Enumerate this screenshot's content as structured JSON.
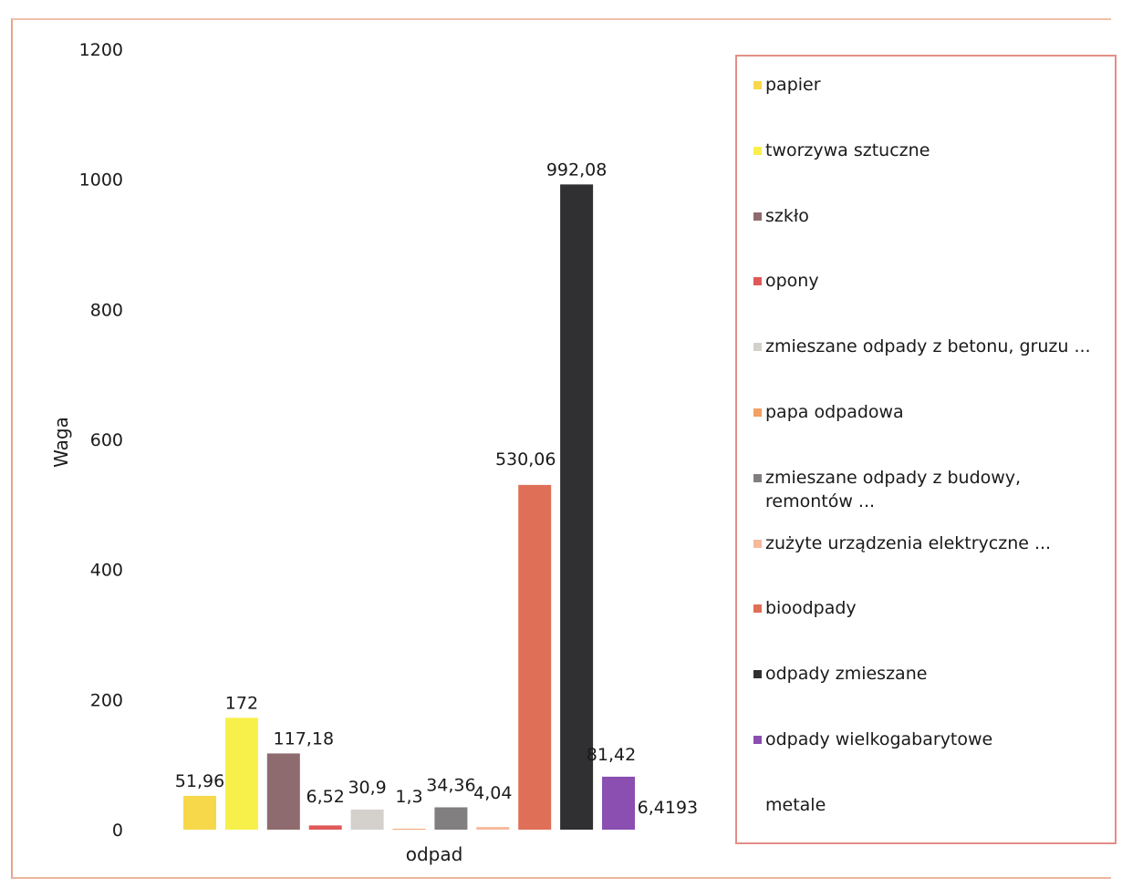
{
  "chart_data": {
    "type": "bar",
    "title": "",
    "xlabel": "odpad",
    "ylabel": "Waga",
    "ylim": [
      0,
      1200
    ],
    "yticks": [
      0,
      200,
      400,
      600,
      800,
      1000,
      1200
    ],
    "grid": false,
    "legend_position": "right",
    "series": [
      {
        "name": "papier",
        "value": 51.96,
        "label": "51,96",
        "color": "#f7d84a"
      },
      {
        "name": "tworzywa sztuczne",
        "value": 172,
        "label": "172",
        "color": "#f8f04a"
      },
      {
        "name": "szkło",
        "value": 117.18,
        "label": "117,18",
        "color": "#8e6b6e"
      },
      {
        "name": "opony",
        "value": 6.52,
        "label": "6,52",
        "color": "#e0595a"
      },
      {
        "name": "zmieszane odpady z betonu, gruzu ...",
        "value": 30.9,
        "label": "30,9",
        "color": "#d4d0cc"
      },
      {
        "name": "papa odpadowa",
        "value": 1.3,
        "label": "1,3",
        "color": "#f3a063"
      },
      {
        "name": "zmieszane odpady z budowy, remontów ...",
        "value": 34.36,
        "label": "34,36",
        "color": "#827f80"
      },
      {
        "name": "zużyte urządzenia elektryczne ...",
        "value": 4.04,
        "label": "4,04",
        "color": "#f6b99a"
      },
      {
        "name": "bioodpady",
        "value": 530.06,
        "label": "530,06",
        "color": "#df6f57"
      },
      {
        "name": "odpady zmieszane",
        "value": 992.08,
        "label": "992,08",
        "color": "#303032"
      },
      {
        "name": "odpady wielkogabarytowe",
        "value": 81.42,
        "label": "81,42",
        "color": "#8a4fb0"
      },
      {
        "name": "metale",
        "value": 6.4193,
        "label": "6,4193",
        "color": "#ffffff"
      }
    ]
  }
}
